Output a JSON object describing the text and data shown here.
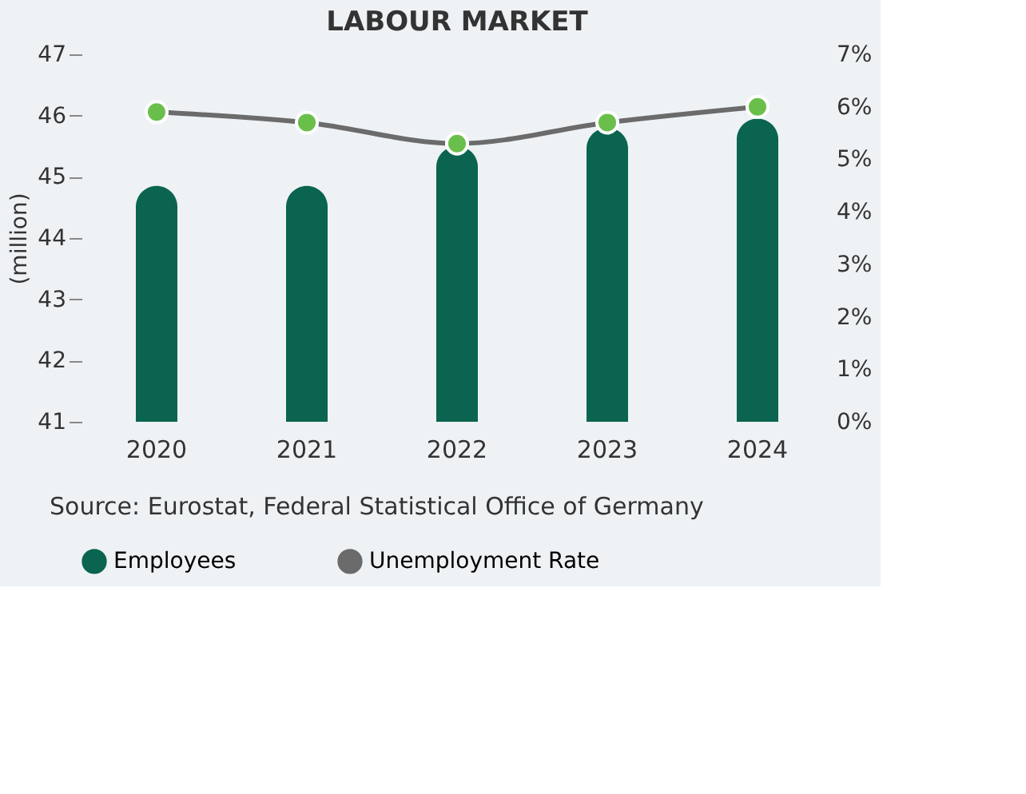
{
  "chart_data": {
    "type": "bar",
    "title": "LABOUR MARKET",
    "ylabel": "(million)",
    "categories": [
      "2020",
      "2021",
      "2022",
      "2023",
      "2024"
    ],
    "series": [
      {
        "name": "Employees",
        "color": "#0b6450",
        "values": [
          44.85,
          44.85,
          45.5,
          45.8,
          45.95
        ]
      },
      {
        "name": "Unemployment Rate",
        "type": "line",
        "axis": "y2",
        "color": "#6b6b6b",
        "marker": "circle",
        "values": [
          5.9,
          5.7,
          5.3,
          5.7,
          6.0
        ]
      }
    ],
    "ylim": [
      41,
      47
    ],
    "yticks": [
      41,
      42,
      43,
      44,
      45,
      46,
      47
    ],
    "y2lim": [
      0,
      7
    ],
    "y2ticks": [
      {
        "value": 0,
        "label": "0%"
      },
      {
        "value": 1,
        "label": "1%"
      },
      {
        "value": 2,
        "label": "2%"
      },
      {
        "value": 3,
        "label": "3%"
      },
      {
        "value": 4,
        "label": "4%"
      },
      {
        "value": 5,
        "label": "5%"
      },
      {
        "value": 6,
        "label": "6%"
      },
      {
        "value": 7,
        "label": "7%"
      }
    ],
    "grid": false,
    "legend": "bottom",
    "annotations": [
      "Source:   Eurostat, Federal Statistical Office of Germany"
    ]
  }
}
